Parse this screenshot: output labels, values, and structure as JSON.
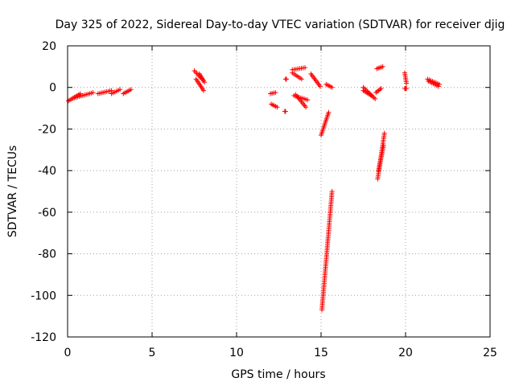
{
  "chart_data": {
    "type": "scatter",
    "title": "Day 325 of 2022, Sidereal Day-to-day VTEC variation (SDTVAR) for receiver djig",
    "xlabel": "GPS time / hours",
    "ylabel": "SDTVAR / TECUs",
    "xlim": [
      0,
      25
    ],
    "ylim": [
      -120,
      20
    ],
    "xticks": [
      0,
      5,
      10,
      15,
      20,
      25
    ],
    "yticks": [
      -120,
      -100,
      -80,
      -60,
      -40,
      -20,
      0,
      20
    ],
    "grid": true,
    "marker": "+",
    "color": "#ff0000",
    "segments": [
      {
        "x0": 0.05,
        "x1": 0.75,
        "y0": -6.5,
        "y1": -3.0
      },
      {
        "x0": 0.4,
        "x1": 1.5,
        "y0": -5.0,
        "y1": -2.5
      },
      {
        "x0": 1.8,
        "x1": 2.6,
        "y0": -3.0,
        "y1": -1.5
      },
      {
        "x0": 2.6,
        "x1": 3.1,
        "y0": -3.0,
        "y1": -1.0
      },
      {
        "x0": 3.3,
        "x1": 3.75,
        "y0": -3.0,
        "y1": -1.0
      },
      {
        "x0": 7.5,
        "x1": 7.95,
        "y0": 8.0,
        "y1": 4.0
      },
      {
        "x0": 7.6,
        "x1": 8.05,
        "y0": 4.0,
        "y1": -1.5
      },
      {
        "x0": 7.8,
        "x1": 8.1,
        "y0": 6.5,
        "y1": 2.5
      },
      {
        "x0": 12.0,
        "x1": 12.3,
        "y0": -3.0,
        "y1": -2.5
      },
      {
        "x0": 12.05,
        "x1": 12.4,
        "y0": -8.0,
        "y1": -9.5
      },
      {
        "x0": 12.9,
        "x1": 12.95,
        "y0": 4.0,
        "y1": 4.0
      },
      {
        "x0": 12.85,
        "x1": 12.9,
        "y0": -11.5,
        "y1": -11.5
      },
      {
        "x0": 13.3,
        "x1": 14.05,
        "y0": 8.5,
        "y1": 9.5
      },
      {
        "x0": 13.3,
        "x1": 13.85,
        "y0": 7.0,
        "y1": 4.0
      },
      {
        "x0": 13.4,
        "x1": 14.2,
        "y0": -4.0,
        "y1": -6.0
      },
      {
        "x0": 13.5,
        "x1": 14.1,
        "y0": -3.5,
        "y1": -9.5
      },
      {
        "x0": 14.4,
        "x1": 14.95,
        "y0": 6.5,
        "y1": 0.5
      },
      {
        "x0": 15.3,
        "x1": 15.65,
        "y0": 1.5,
        "y1": 0.0
      },
      {
        "x0": 15.0,
        "x1": 15.45,
        "y0": -23.0,
        "y1": -12.0
      },
      {
        "x0": 15.05,
        "x1": 15.65,
        "y0": -107.0,
        "y1": -50.0
      },
      {
        "x0": 17.5,
        "x1": 18.2,
        "y0": 0.0,
        "y1": -5.5
      },
      {
        "x0": 17.5,
        "x1": 18.0,
        "y0": -1.5,
        "y1": -4.0
      },
      {
        "x0": 18.25,
        "x1": 18.55,
        "y0": -2.5,
        "y1": -0.5
      },
      {
        "x0": 18.3,
        "x1": 18.65,
        "y0": 9.0,
        "y1": 10.0
      },
      {
        "x0": 18.35,
        "x1": 18.75,
        "y0": -44.0,
        "y1": -22.0
      },
      {
        "x0": 18.4,
        "x1": 18.7,
        "y0": -40.0,
        "y1": -28.0
      },
      {
        "x0": 19.95,
        "x1": 20.05,
        "y0": 7.0,
        "y1": 2.0
      },
      {
        "x0": 19.95,
        "x1": 20.05,
        "y0": -0.5,
        "y1": -0.5
      },
      {
        "x0": 21.3,
        "x1": 22.0,
        "y0": 4.0,
        "y1": 1.5
      },
      {
        "x0": 21.35,
        "x1": 21.95,
        "y0": 3.0,
        "y1": 0.5
      }
    ]
  }
}
